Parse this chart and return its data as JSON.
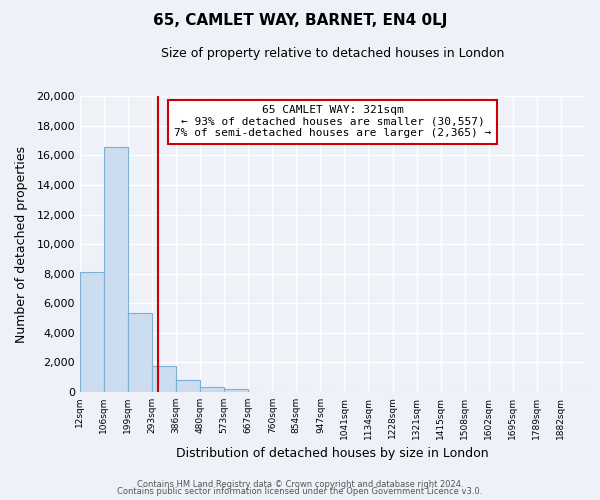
{
  "title": "65, CAMLET WAY, BARNET, EN4 0LJ",
  "subtitle": "Size of property relative to detached houses in London",
  "xlabel": "Distribution of detached houses by size in London",
  "ylabel": "Number of detached properties",
  "bin_labels": [
    "12sqm",
    "106sqm",
    "199sqm",
    "293sqm",
    "386sqm",
    "480sqm",
    "573sqm",
    "667sqm",
    "760sqm",
    "854sqm",
    "947sqm",
    "1041sqm",
    "1134sqm",
    "1228sqm",
    "1321sqm",
    "1415sqm",
    "1508sqm",
    "1602sqm",
    "1695sqm",
    "1789sqm",
    "1882sqm"
  ],
  "bar_values": [
    8100,
    16600,
    5300,
    1750,
    800,
    300,
    200,
    0,
    0,
    0,
    0,
    0,
    0,
    0,
    0,
    0,
    0,
    0,
    0,
    0,
    0
  ],
  "bar_color": "#ccddf0",
  "bar_edgecolor": "#7bafd4",
  "vline_x": 3.24,
  "vline_color": "#cc0000",
  "annotation_title": "65 CAMLET WAY: 321sqm",
  "annotation_line1": "← 93% of detached houses are smaller (30,557)",
  "annotation_line2": "7% of semi-detached houses are larger (2,365) →",
  "annotation_box_edgecolor": "#cc0000",
  "annotation_box_facecolor": "#ffffff",
  "ylim": [
    0,
    20000
  ],
  "yticks": [
    0,
    2000,
    4000,
    6000,
    8000,
    10000,
    12000,
    14000,
    16000,
    18000,
    20000
  ],
  "footer_line1": "Contains HM Land Registry data © Crown copyright and database right 2024.",
  "footer_line2": "Contains public sector information licensed under the Open Government Licence v3.0.",
  "background_color": "#eef2f8",
  "grid_color": "#ffffff"
}
